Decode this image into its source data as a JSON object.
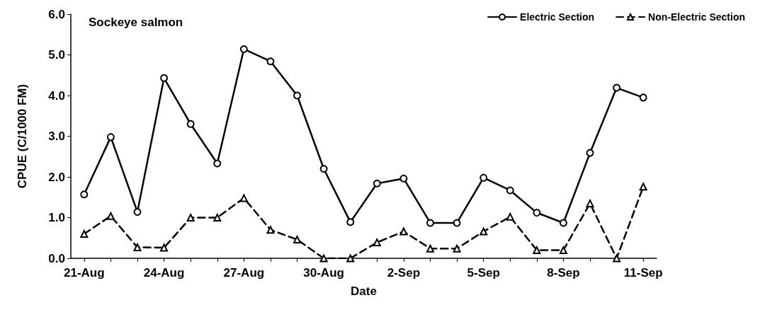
{
  "chart_data": {
    "type": "line",
    "title": "Sockeye salmon",
    "xlabel": "Date",
    "ylabel": "CPUE (C/1000 FM)",
    "categories": [
      "21-Aug",
      null,
      null,
      "24-Aug",
      null,
      null,
      "27-Aug",
      null,
      null,
      "30-Aug",
      null,
      null,
      "2-Sep",
      null,
      null,
      "5-Sep",
      null,
      null,
      "8-Sep",
      null,
      null,
      "11-Sep"
    ],
    "series": [
      {
        "name": "Electric Section",
        "color": "#000000",
        "marker": "circle",
        "line_style": "solid",
        "values": [
          1.57,
          2.98,
          1.14,
          4.43,
          3.3,
          2.33,
          5.14,
          4.84,
          4.0,
          2.2,
          0.89,
          1.84,
          1.96,
          0.87,
          0.87,
          1.98,
          1.67,
          1.12,
          0.87,
          2.59,
          4.19,
          3.95
        ]
      },
      {
        "name": "Non-Electric Section",
        "color": "#000000",
        "marker": "triangle",
        "line_style": "dashed",
        "values": [
          0.6,
          1.04,
          0.27,
          0.26,
          1.0,
          1.0,
          1.48,
          0.7,
          0.46,
          0.0,
          0.0,
          0.39,
          0.66,
          0.24,
          0.24,
          0.66,
          1.02,
          0.2,
          0.2,
          1.35,
          0.0,
          1.76
        ]
      }
    ],
    "ylim": [
      0,
      6
    ],
    "yticks": [
      {
        "value": 0,
        "label": "0.0"
      },
      {
        "value": 1,
        "label": "1.0"
      },
      {
        "value": 2,
        "label": "2.0"
      },
      {
        "value": 3,
        "label": "3.0"
      },
      {
        "value": 4,
        "label": "4.0"
      },
      {
        "value": 5,
        "label": "5.0"
      },
      {
        "value": 6,
        "label": "6.0"
      }
    ],
    "grid": false,
    "legend": "top right"
  }
}
